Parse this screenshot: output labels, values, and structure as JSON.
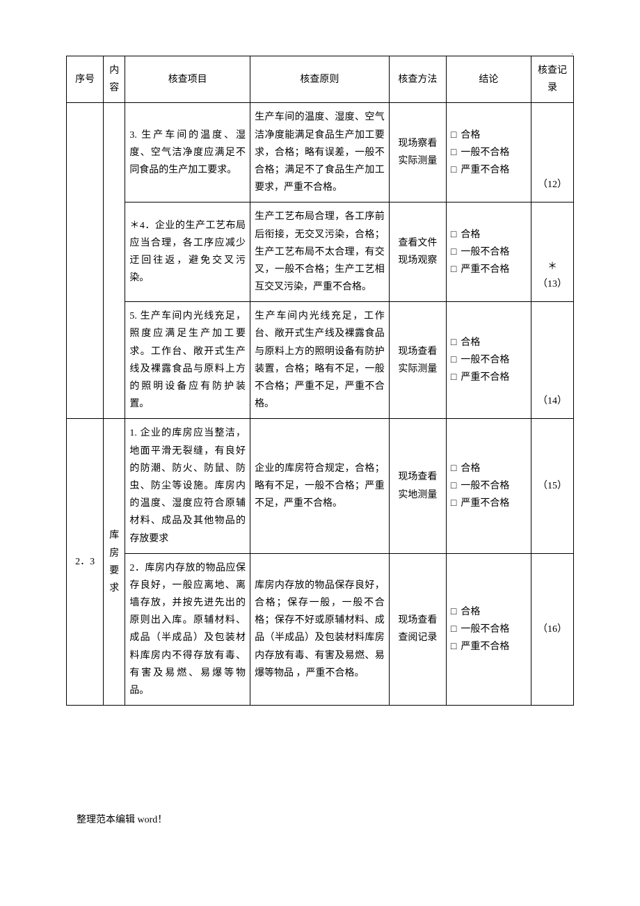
{
  "dot": ".",
  "headers": {
    "seq": "序号",
    "content": "内容",
    "item": "核查项目",
    "principle": "核查原则",
    "method": "核查方法",
    "conclusion": "结论",
    "record": "核查记录"
  },
  "conclusion_options": {
    "pass": "合格",
    "general_fail": "一般不合格",
    "serious_fail": "严重不合格"
  },
  "checkbox_symbol": "□",
  "rows": [
    {
      "item": "3. 生产车间的温度、湿度、空气洁净度应满足不同食品的生产加工要求。",
      "principle": "生产车间的温度、湿度、空气洁净度能满足食品生产加工要求，合格；略有误差，一般不合格；满足不了食品生产加工要求，严重不合格。",
      "method": "现场察看实际测量",
      "record": "（12）"
    },
    {
      "item": "＊4．企业的生产工艺布局应当合理，各工序应减少迂回往返，避免交叉污染。",
      "principle": "生产工艺布局合理，各工序前后衔接，无交叉污染，合格；生产工艺布局不太合理，有交叉，一般不合格；生产工艺相互交叉污染，严重不合格。",
      "method": "查看文件现场观察",
      "record": "＊（13）"
    },
    {
      "item": "5. 生产车间内光线充足，照度应满足生产加工要求。工作台、敞开式生产线及裸露食品与原料上方的照明设备应有防护装置。",
      "principle": "生产车间内光线充足，工作台、敞开式生产线及裸露食品与原料上方的照明设备有防护装置，合格；略有不足，一般不合格；严重不足，严重不合格。",
      "method": "现场查看实际测量",
      "record": "（14）"
    },
    {
      "seq": "2．3",
      "content": "库房要求",
      "item": "1. 企业的库房应当整洁，地面平滑无裂缝，有良好的防潮、防火、防鼠、防虫、防尘等设施。库房内的温度、湿度应符合原辅材料、成品及其他物品的存放要求",
      "principle": "企业的库房符合规定，合格；略有不足，一般不合格；严重不足，严重不合格。",
      "method": "现场查看实地测量",
      "record": "（15）"
    },
    {
      "item": "2．库房内存放的物品应保存良好，一般应离地、离墙存放，并按先进先出的原则出入库。原辅材料、成品（半成品）及包装材料库房内不得存放有毒、有害及易燃、易爆等物品。",
      "principle": "库房内存放的物品保存良好，合格；保存一般，一般不合格；保存不好或原辅材料、成品（半成品）及包装材料库房内存放有毒、有害及易燃、易爆等物品 ，严重不合格。",
      "method": "现场查看查阅记录",
      "record": "（16）"
    }
  ],
  "footer": "整理范本编辑 word！"
}
